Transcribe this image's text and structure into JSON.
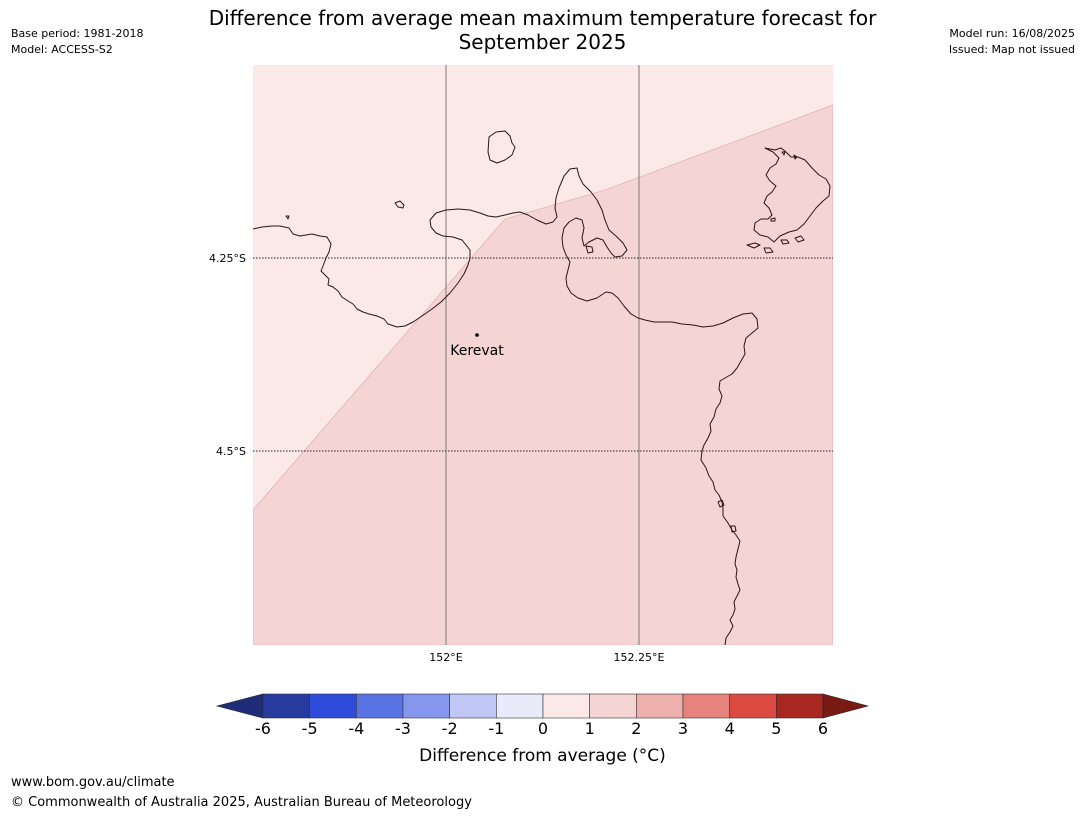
{
  "header": {
    "base_period": "Base period: 1981-2018",
    "model": "Model: ACCESS-S2",
    "model_run": "Model run: 16/08/2025",
    "issued": "Issued: Map not issued",
    "title_line1": "Difference from average mean maximum temperature forecast for",
    "title_line2": "September 2025"
  },
  "map": {
    "latitude_labels": [
      "4.25°S",
      "4.5°S"
    ],
    "longitude_labels": [
      "152°E",
      "152.25°E"
    ],
    "place_label": "Kerevat",
    "regions": [
      {
        "category": "0 to 1",
        "color": "#fbe9e8"
      },
      {
        "category": "1 to 2",
        "color": "#f4d5d3"
      }
    ],
    "coastline_color": "#2b1416"
  },
  "legend": {
    "label": "Difference from average (°C)",
    "ticks": [
      "-6",
      "-5",
      "-4",
      "-3",
      "-2",
      "-1",
      "0",
      "1",
      "2",
      "3",
      "4",
      "5",
      "6"
    ],
    "colors": [
      "#273a9e",
      "#2d4ada",
      "#5a73e3",
      "#8596ec",
      "#c1c7f4",
      "#e9ebfb",
      "#fbe9e8",
      "#f4d5d3",
      "#eeb0ab",
      "#e6837c",
      "#db4a40",
      "#a82821"
    ],
    "under_color": "#1f2c7a",
    "over_color": "#7a1a15"
  },
  "footer": {
    "url": "www.bom.gov.au/climate",
    "copyright": "© Commonwealth of Australia 2025, Australian Bureau of Meteorology"
  }
}
